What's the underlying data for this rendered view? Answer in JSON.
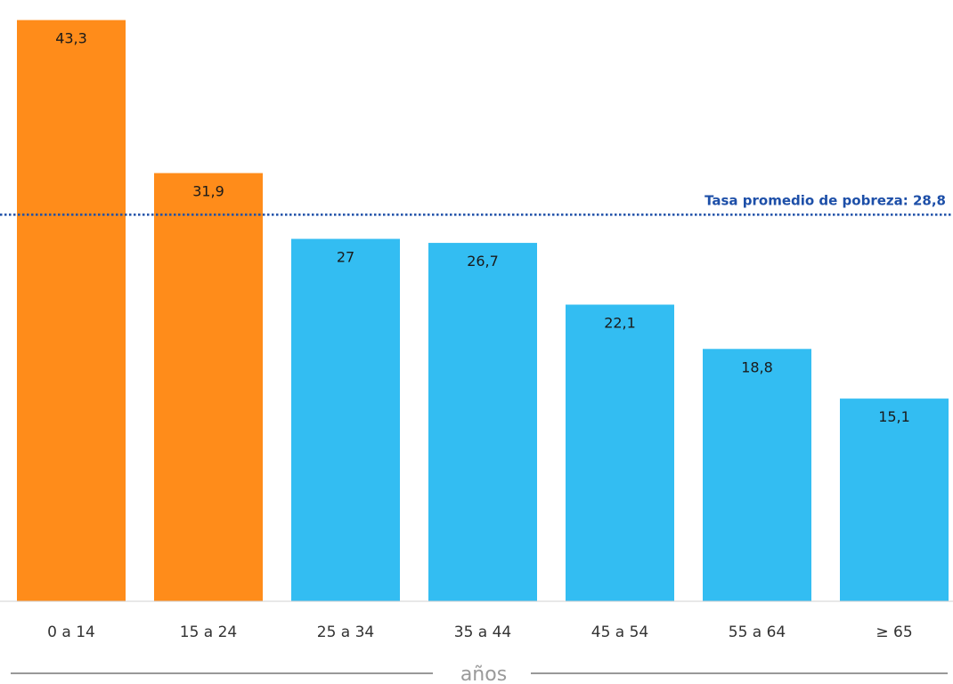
{
  "chart_data": {
    "type": "bar",
    "categories": [
      "0 a 14",
      "15 a 24",
      "25 a 34",
      "35 a 44",
      "45 a 54",
      "55 a 64",
      "≥ 65"
    ],
    "values": [
      43.3,
      31.9,
      27,
      26.7,
      22.1,
      18.8,
      15.1
    ],
    "value_labels": [
      "43,3",
      "31,9",
      "27",
      "26,7",
      "22,1",
      "18,8",
      "15,1"
    ],
    "xlabel": "años",
    "ylim": [
      0,
      44
    ],
    "grid": false,
    "reference_line": {
      "value": 28.8,
      "label": "Tasa promedio de pobreza: 28,8",
      "color": "#1d4fa8",
      "style": "dotted"
    },
    "colors": {
      "highlight": "#ff8c1a",
      "normal": "#33bdf2",
      "highlight_categories": [
        "0 a 14",
        "15 a 24"
      ],
      "axis_line": "#d0d0d0",
      "title_rule": "#999999"
    }
  }
}
